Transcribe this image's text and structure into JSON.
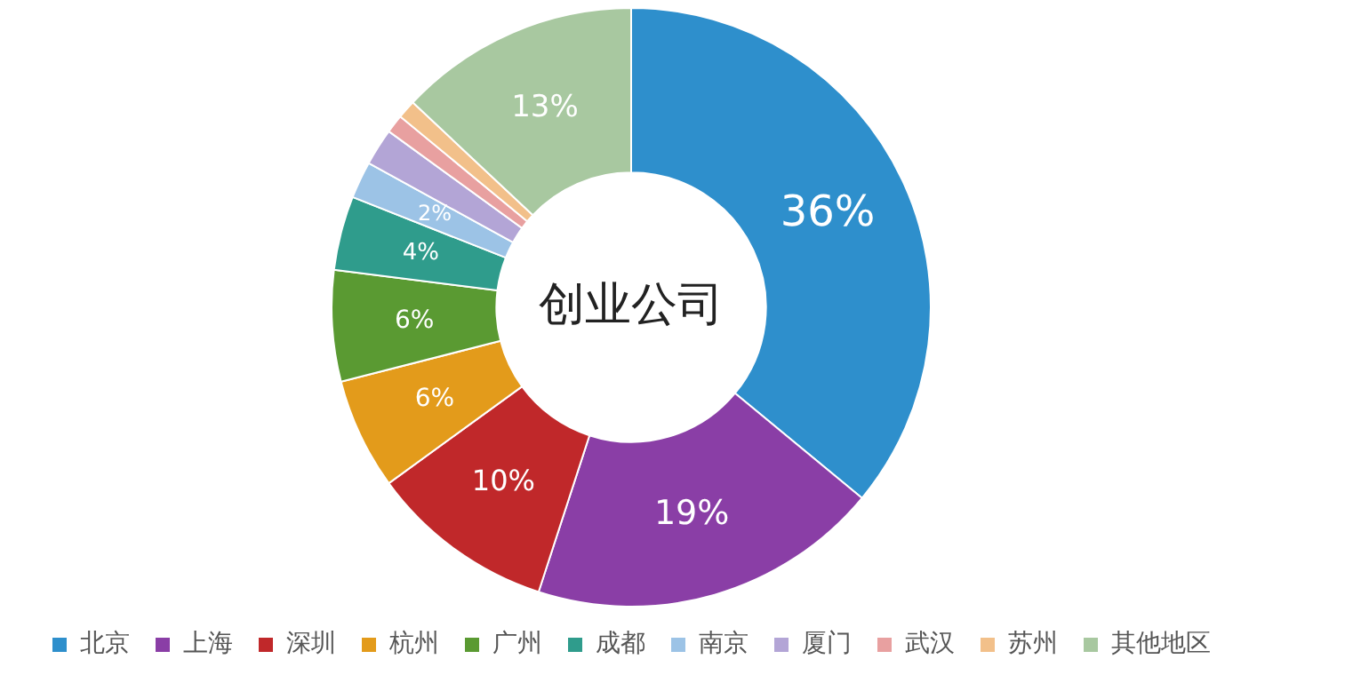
{
  "chart_data": {
    "type": "donut",
    "title": "创业公司",
    "categories": [
      "北京",
      "上海",
      "深圳",
      "杭州",
      "广州",
      "成都",
      "南京",
      "厦门",
      "武汉",
      "苏州",
      "其他地区"
    ],
    "values": [
      36,
      19,
      10,
      6,
      6,
      4,
      2,
      2,
      1,
      1,
      13
    ],
    "colors": [
      "#2e8fcc",
      "#8a3ea6",
      "#c0282a",
      "#e39b1b",
      "#5a9a32",
      "#2f9c8c",
      "#9cc3e6",
      "#b3a5d6",
      "#e8a0a0",
      "#f2c08a",
      "#a8c8a0"
    ],
    "value_labels": [
      "36%",
      "19%",
      "10%",
      "6%",
      "6%",
      "4%",
      "2%",
      null,
      null,
      null,
      "13%"
    ],
    "legend": "bottom"
  }
}
